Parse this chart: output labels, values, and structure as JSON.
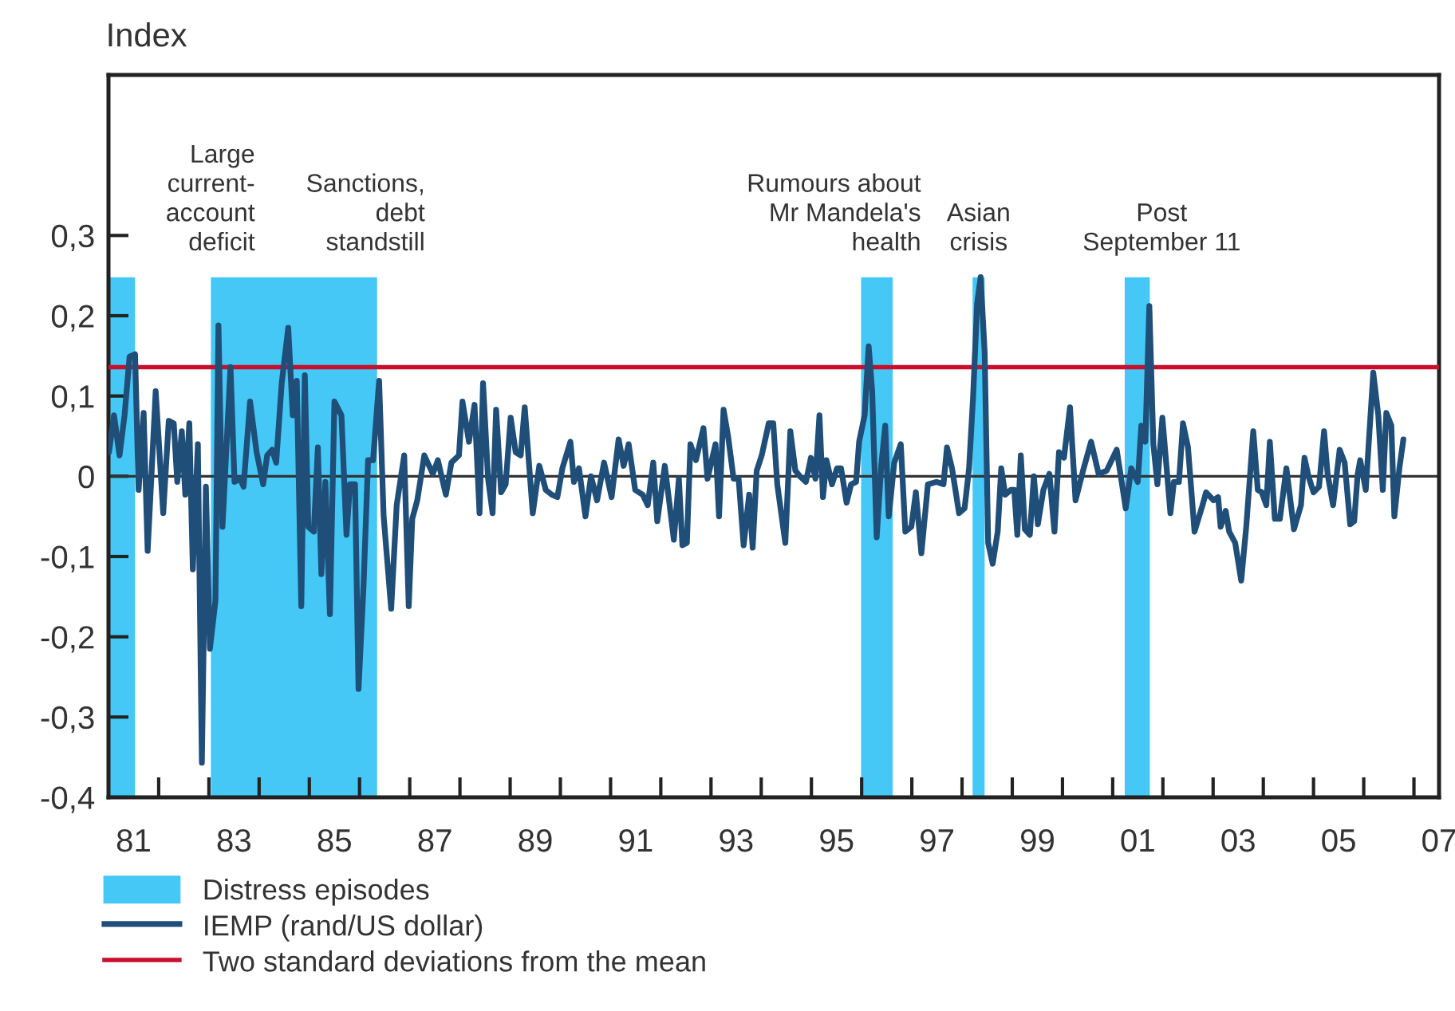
{
  "chart_data": {
    "type": "line",
    "ylabel": "Index",
    "legend": "bottom",
    "xlim": [
      1980.5,
      2007
    ],
    "xticks": [
      {
        "value": 1981,
        "label": "81"
      },
      {
        "value": 1983,
        "label": "83"
      },
      {
        "value": 1985,
        "label": "85"
      },
      {
        "value": 1987,
        "label": "87"
      },
      {
        "value": 1989,
        "label": "89"
      },
      {
        "value": 1991,
        "label": "91"
      },
      {
        "value": 1993,
        "label": "93"
      },
      {
        "value": 1995,
        "label": "95"
      },
      {
        "value": 1997,
        "label": "97"
      },
      {
        "value": 1999,
        "label": "99"
      },
      {
        "value": 2001,
        "label": "01"
      },
      {
        "value": 2003,
        "label": "03"
      },
      {
        "value": 2005,
        "label": "05"
      },
      {
        "value": 2007,
        "label": "07"
      },
      {
        "value": 1981.5,
        "label": null
      },
      {
        "value": 1982.5,
        "label": null
      },
      {
        "value": 1983.5,
        "label": null
      },
      {
        "value": 1984.5,
        "label": null
      },
      {
        "value": 1985.5,
        "label": null
      },
      {
        "value": 1986.5,
        "label": null
      },
      {
        "value": 1987.5,
        "label": null
      },
      {
        "value": 1988.5,
        "label": null
      },
      {
        "value": 1989.5,
        "label": null
      },
      {
        "value": 1990.5,
        "label": null
      },
      {
        "value": 1991.5,
        "label": null
      },
      {
        "value": 1992.5,
        "label": null
      },
      {
        "value": 1993.5,
        "label": null
      },
      {
        "value": 1994.5,
        "label": null
      },
      {
        "value": 1995.5,
        "label": null
      },
      {
        "value": 1996.5,
        "label": null
      },
      {
        "value": 1997.5,
        "label": null
      },
      {
        "value": 1998.5,
        "label": null
      },
      {
        "value": 1999.5,
        "label": null
      },
      {
        "value": 2000.5,
        "label": null
      },
      {
        "value": 2001.5,
        "label": null
      },
      {
        "value": 2002.5,
        "label": null
      },
      {
        "value": 2003.5,
        "label": null
      },
      {
        "value": 2004.5,
        "label": null
      },
      {
        "value": 2005.5,
        "label": null
      },
      {
        "value": 2006.5,
        "label": null
      }
    ],
    "ylim": [
      -0.4,
      0.5
    ],
    "yticks": [
      {
        "value": -0.4,
        "label": "-0,4"
      },
      {
        "value": -0.3,
        "label": "-0,3"
      },
      {
        "value": -0.2,
        "label": "-0,2"
      },
      {
        "value": -0.1,
        "label": "-0,1"
      },
      0,
      {
        "value": 0.1,
        "label": "0,1"
      },
      {
        "value": 0.2,
        "label": "0,2"
      },
      {
        "value": 0.3,
        "label": "0,3"
      }
    ],
    "bands": [
      {
        "axis": "x",
        "from": 1980.5,
        "to": 1981.03,
        "label": "Distress episodes",
        "color": "#45c8f5"
      },
      {
        "axis": "x",
        "from": 1982.54,
        "to": 1985.85,
        "color": "#45c8f5"
      },
      {
        "axis": "x",
        "from": 1995.49,
        "to": 1996.12,
        "color": "#45c8f5"
      },
      {
        "axis": "x",
        "from": 1997.71,
        "to": 1997.95,
        "color": "#45c8f5"
      },
      {
        "axis": "x",
        "from": 2000.74,
        "to": 2001.24,
        "color": "#45c8f5"
      }
    ],
    "ref_lines": [
      {
        "axis": "y",
        "value": 0,
        "color": "#333333"
      },
      {
        "axis": "y",
        "value": 0.136,
        "label": "Two standard deviations from the mean",
        "color": "#c8102e"
      }
    ],
    "annotations": [
      {
        "text": "Large\ncurrent-\naccount\ndeficit",
        "x": 1980.77,
        "y": 0.25
      },
      {
        "text": "Sanctions,\ndebt\nstandstill",
        "x": 1984.2,
        "y": 0.25
      },
      {
        "text": "Rumours about\nMr Mandela's\nhealth",
        "x": 1995.8,
        "y": 0.25
      },
      {
        "text": "Asian\ncrisis",
        "x": 1997.83,
        "y": 0.25
      },
      {
        "text": "Post\nSeptember 11",
        "x": 2000.99,
        "y": 0.25
      }
    ],
    "series": [
      {
        "name": "IEMP (rand/US dollar)",
        "color": "#1f4e79",
        "x": [
          1980.51,
          1980.61,
          1980.72,
          1980.82,
          1980.92,
          1981.03,
          1981.1,
          1981.2,
          1981.28,
          1981.44,
          1981.59,
          1981.7,
          1981.8,
          1981.87,
          1981.96,
          1982.03,
          1982.11,
          1982.18,
          1982.28,
          1982.36,
          1982.44,
          1982.52,
          1982.63,
          1982.69,
          1982.77,
          1982.93,
          1983.01,
          1983.12,
          1983.19,
          1983.32,
          1983.45,
          1983.58,
          1983.66,
          1983.76,
          1983.84,
          1983.95,
          1984.08,
          1984.17,
          1984.25,
          1984.34,
          1984.41,
          1984.48,
          1984.59,
          1984.67,
          1984.74,
          1984.82,
          1984.91,
          1985.0,
          1985.14,
          1985.24,
          1985.31,
          1985.41,
          1985.48,
          1985.58,
          1985.67,
          1985.77,
          1985.89,
          1985.98,
          1986.13,
          1986.24,
          1986.39,
          1986.48,
          1986.55,
          1986.65,
          1986.79,
          1986.96,
          1987.06,
          1987.22,
          1987.33,
          1987.48,
          1987.55,
          1987.68,
          1987.79,
          1987.89,
          1987.96,
          1988.06,
          1988.15,
          1988.22,
          1988.32,
          1988.41,
          1988.51,
          1988.61,
          1988.71,
          1988.79,
          1988.95,
          1989.08,
          1989.21,
          1989.33,
          1989.44,
          1989.54,
          1989.7,
          1989.77,
          1989.87,
          1990.0,
          1990.11,
          1990.23,
          1990.37,
          1990.52,
          1990.66,
          1990.76,
          1990.86,
          1990.99,
          1991.14,
          1991.24,
          1991.35,
          1991.43,
          1991.58,
          1991.76,
          1991.86,
          1991.93,
          1992.02,
          1992.09,
          1992.2,
          1992.35,
          1992.43,
          1992.59,
          1992.66,
          1992.75,
          1992.84,
          1992.95,
          1993.05,
          1993.15,
          1993.26,
          1993.33,
          1993.41,
          1993.51,
          1993.65,
          1993.74,
          1993.82,
          1993.98,
          1994.08,
          1994.18,
          1994.27,
          1994.39,
          1994.49,
          1994.58,
          1994.66,
          1994.73,
          1994.8,
          1994.91,
          1995.01,
          1995.09,
          1995.2,
          1995.29,
          1995.39,
          1995.45,
          1995.56,
          1995.64,
          1995.71,
          1995.8,
          1995.89,
          1995.97,
          1996.04,
          1996.15,
          1996.28,
          1996.37,
          1996.49,
          1996.58,
          1996.69,
          1996.82,
          1996.99,
          1997.13,
          1997.2,
          1997.3,
          1997.44,
          1997.55,
          1997.64,
          1997.72,
          1997.8,
          1997.87,
          1997.95,
          1998.02,
          1998.11,
          1998.21,
          1998.28,
          1998.36,
          1998.47,
          1998.54,
          1998.6,
          1998.67,
          1998.75,
          1998.85,
          1998.93,
          1999.01,
          1999.12,
          1999.24,
          1999.34,
          1999.43,
          1999.53,
          1999.65,
          1999.76,
          1999.91,
          2000.07,
          2000.22,
          2000.38,
          2000.58,
          2000.76,
          2000.87,
          2001.0,
          2001.07,
          2001.15,
          2001.23,
          2001.31,
          2001.39,
          2001.49,
          2001.65,
          2001.72,
          2001.82,
          2001.9,
          2002.0,
          2002.13,
          2002.29,
          2002.36,
          2002.51,
          2002.6,
          2002.65,
          2002.75,
          2002.82,
          2002.94,
          2003.06,
          2003.16,
          2003.3,
          2003.39,
          2003.47,
          2003.56,
          2003.63,
          2003.73,
          2003.83,
          2003.96,
          2004.11,
          2004.25,
          2004.32,
          2004.4,
          2004.5,
          2004.61,
          2004.71,
          2004.78,
          2004.89,
          2005.02,
          2005.12,
          2005.23,
          2005.31,
          2005.38,
          2005.43,
          2005.54,
          2005.69,
          2005.79,
          2005.88,
          2005.95,
          2006.05,
          2006.11,
          2006.21,
          2006.29
        ],
        "values": [
          0.03,
          0.076,
          0.026,
          0.076,
          0.149,
          0.152,
          -0.017,
          0.079,
          -0.093,
          0.106,
          -0.046,
          0.069,
          0.066,
          -0.007,
          0.056,
          -0.023,
          0.066,
          -0.116,
          0.04,
          -0.357,
          -0.013,
          -0.215,
          -0.155,
          0.188,
          -0.063,
          0.136,
          -0.007,
          -0.003,
          -0.013,
          0.093,
          0.03,
          -0.01,
          0.026,
          0.033,
          0.017,
          0.116,
          0.185,
          0.076,
          0.119,
          -0.162,
          0.126,
          -0.063,
          -0.069,
          0.036,
          -0.122,
          -0.007,
          -0.172,
          0.093,
          0.076,
          -0.073,
          -0.01,
          -0.01,
          -0.265,
          -0.136,
          0.02,
          0.02,
          0.119,
          -0.05,
          -0.165,
          -0.036,
          0.026,
          -0.162,
          -0.053,
          -0.03,
          0.026,
          0.003,
          0.02,
          -0.023,
          0.017,
          0.026,
          0.093,
          0.043,
          0.089,
          -0.046,
          0.116,
          -0.003,
          -0.046,
          0.083,
          -0.02,
          -0.01,
          0.073,
          0.03,
          0.026,
          0.086,
          -0.046,
          0.013,
          -0.017,
          -0.023,
          -0.026,
          0.01,
          0.043,
          -0.007,
          0.01,
          -0.05,
          0.0,
          -0.03,
          0.017,
          -0.026,
          0.046,
          0.013,
          0.04,
          -0.017,
          -0.023,
          -0.036,
          0.017,
          -0.056,
          0.013,
          -0.079,
          -0.003,
          -0.086,
          -0.083,
          0.04,
          0.02,
          0.06,
          -0.003,
          0.04,
          -0.05,
          0.083,
          0.05,
          -0.003,
          -0.003,
          -0.086,
          -0.023,
          -0.089,
          0.007,
          0.026,
          0.066,
          0.066,
          -0.01,
          -0.083,
          0.056,
          0.007,
          0.0,
          -0.007,
          0.023,
          -0.003,
          0.076,
          -0.026,
          0.02,
          -0.01,
          0.01,
          0.01,
          -0.033,
          -0.01,
          -0.007,
          0.043,
          0.076,
          0.162,
          0.106,
          -0.076,
          0.013,
          0.063,
          -0.05,
          0.017,
          0.04,
          -0.069,
          -0.063,
          -0.02,
          -0.096,
          -0.01,
          -0.007,
          -0.01,
          0.036,
          0.01,
          -0.046,
          -0.04,
          0.01,
          0.099,
          0.215,
          0.248,
          0.155,
          -0.083,
          -0.109,
          -0.069,
          0.01,
          -0.023,
          -0.017,
          -0.017,
          -0.073,
          0.026,
          -0.066,
          -0.073,
          0.0,
          -0.06,
          -0.017,
          0.003,
          -0.069,
          0.03,
          0.023,
          0.086,
          -0.03,
          0.007,
          0.043,
          0.003,
          0.007,
          0.033,
          -0.04,
          0.01,
          -0.007,
          0.063,
          0.043,
          0.212,
          0.04,
          -0.01,
          0.073,
          -0.046,
          -0.007,
          -0.007,
          0.066,
          0.036,
          -0.069,
          -0.036,
          -0.02,
          -0.03,
          -0.026,
          -0.063,
          -0.043,
          -0.069,
          -0.083,
          -0.13,
          -0.063,
          0.056,
          -0.017,
          -0.02,
          -0.036,
          0.043,
          -0.053,
          -0.053,
          0.01,
          -0.066,
          -0.036,
          0.023,
          0.0,
          -0.02,
          -0.013,
          0.056,
          0.003,
          -0.036,
          0.033,
          0.017,
          -0.06,
          -0.056,
          0.003,
          0.02,
          -0.017,
          0.129,
          0.076,
          -0.017,
          0.079,
          0.063,
          -0.05,
          0.01,
          0.046
        ]
      }
    ]
  }
}
